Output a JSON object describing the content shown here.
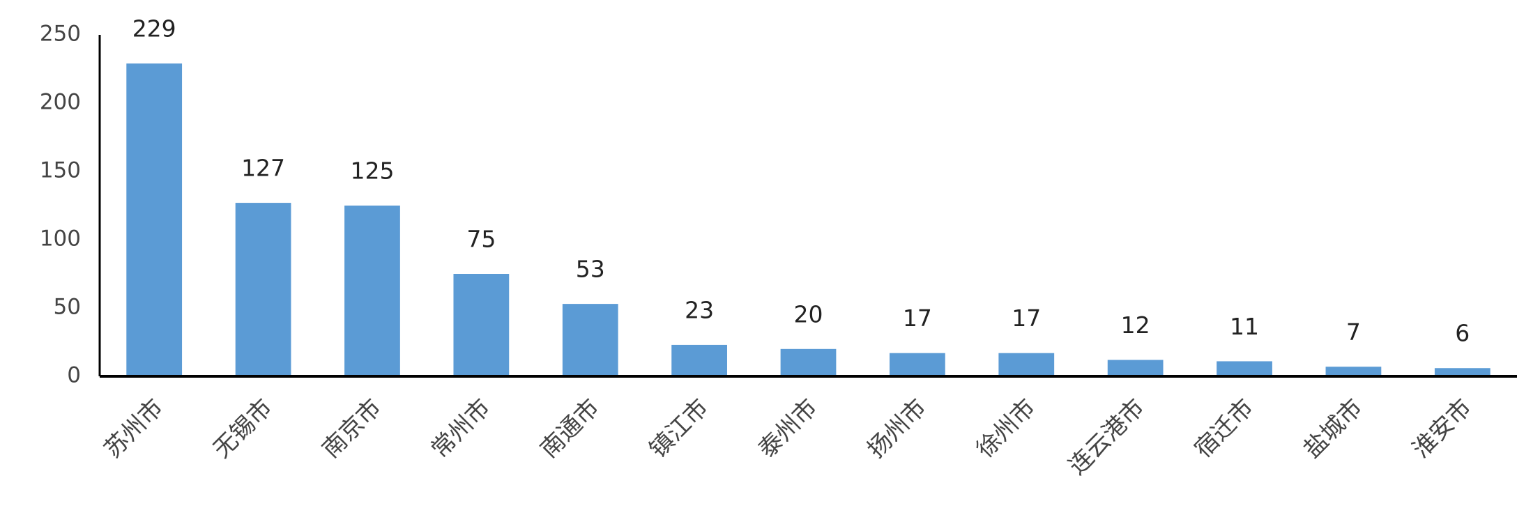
{
  "chart_data": {
    "type": "bar",
    "categories": [
      "苏州市",
      "无锡市",
      "南京市",
      "常州市",
      "南通市",
      "镇江市",
      "泰州市",
      "扬州市",
      "徐州市",
      "连云港市",
      "宿迁市",
      "盐城市",
      "淮安市"
    ],
    "values": [
      229,
      127,
      125,
      75,
      53,
      23,
      20,
      17,
      17,
      12,
      11,
      7,
      6
    ],
    "color": "#5b9bd5",
    "ylim": [
      0,
      250
    ],
    "yticks": [
      0,
      50,
      100,
      150,
      200,
      250
    ],
    "grid": false
  }
}
